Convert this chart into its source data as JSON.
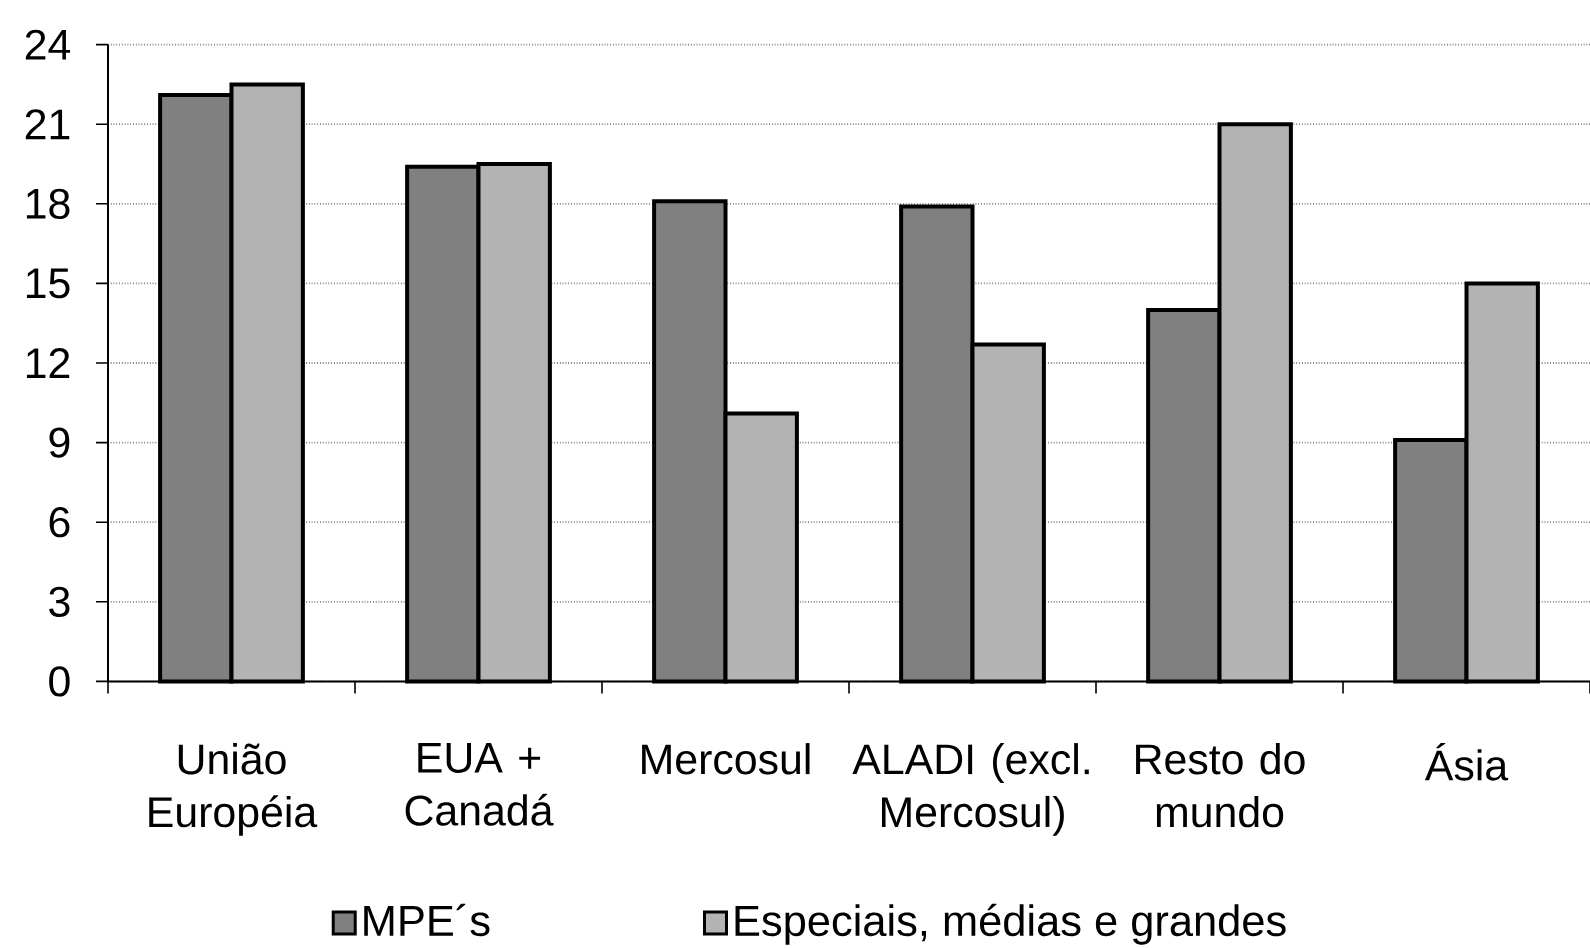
{
  "chart_data": {
    "type": "bar",
    "categories": [
      "União Européia",
      "EUA + Canadá",
      "Mercosul",
      "ALADI (excl. Mercosul)",
      "Resto do mundo",
      "Ásia"
    ],
    "series": [
      {
        "name": "MPE´s",
        "color": "#808080",
        "values": [
          22.1,
          19.4,
          18.1,
          17.9,
          14.0,
          9.1
        ]
      },
      {
        "name": "Especiais, médias e grandes",
        "color": "#b3b3b3",
        "values": [
          22.5,
          19.5,
          10.1,
          12.7,
          21.0,
          15.0
        ]
      }
    ],
    "ylim": [
      0,
      24
    ],
    "yticks": [
      0,
      3,
      6,
      9,
      12,
      15,
      18,
      21,
      24
    ],
    "grid": "y",
    "legend": "bottom"
  }
}
